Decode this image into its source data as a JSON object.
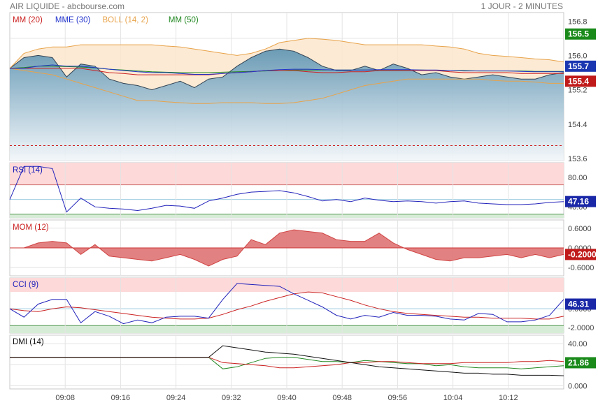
{
  "header": {
    "title": "AIR LIQUIDE - abcbourse.com",
    "interval": "1 JOUR - 2 MINUTES"
  },
  "colors": {
    "mm20": "#cc2222",
    "mme30": "#2233cc",
    "boll": "#e8a34a",
    "mm50": "#228822",
    "rsi": "#2222bb",
    "mom": "#d04545",
    "cci_mom": "#cc2222",
    "cci": "#2222bb",
    "dmi_adx": "#111111",
    "dmi_plus": "#228822",
    "dmi_minus": "#cc2222"
  },
  "chart_data": [
    {
      "type": "area",
      "name": "price",
      "legend": [
        "MM (20)",
        "MME (30)",
        "BOLL (14, 2)",
        "MM (50)"
      ],
      "x_ticks": [
        "09:08",
        "09:16",
        "09:24",
        "09:32",
        "09:40",
        "09:48",
        "09:56",
        "10:04",
        "10:12"
      ],
      "y_ticks": [
        "156.8",
        "156.0",
        "155.2",
        "154.4",
        "153.6"
      ],
      "ylim": [
        153.55,
        157.0
      ],
      "reference_line": 153.9,
      "badges": [
        {
          "label": "156.5",
          "value": 156.5,
          "color": "#1a8a1a"
        },
        {
          "label": "155.7",
          "value": 155.75,
          "color": "#1a36b0"
        },
        {
          "label": "155.4",
          "value": 155.4,
          "color": "#c01a1a"
        }
      ],
      "price": [
        155.7,
        155.95,
        156.0,
        155.95,
        155.5,
        155.8,
        155.75,
        155.45,
        155.35,
        155.3,
        155.2,
        155.3,
        155.4,
        155.25,
        155.45,
        155.5,
        155.75,
        155.95,
        156.1,
        156.15,
        156.1,
        155.95,
        155.75,
        155.65,
        155.65,
        155.75,
        155.65,
        155.8,
        155.7,
        155.55,
        155.6,
        155.5,
        155.45,
        155.5,
        155.55,
        155.5,
        155.45,
        155.45,
        155.55,
        155.6
      ],
      "mm20": [
        155.7,
        155.7,
        155.7,
        155.7,
        155.7,
        155.7,
        155.65,
        155.6,
        155.58,
        155.55,
        155.55,
        155.55,
        155.55,
        155.55,
        155.55,
        155.58,
        155.6,
        155.62,
        155.65,
        155.65,
        155.65,
        155.62,
        155.6,
        155.6,
        155.62,
        155.62,
        155.65,
        155.65,
        155.65,
        155.65,
        155.65,
        155.62,
        155.6,
        155.6,
        155.6,
        155.6,
        155.58,
        155.58,
        155.58,
        155.58
      ],
      "mme30": [
        155.7,
        155.7,
        155.75,
        155.78,
        155.75,
        155.75,
        155.72,
        155.68,
        155.65,
        155.62,
        155.6,
        155.6,
        155.58,
        155.56,
        155.56,
        155.58,
        155.6,
        155.62,
        155.65,
        155.67,
        155.68,
        155.68,
        155.67,
        155.66,
        155.66,
        155.66,
        155.67,
        155.67,
        155.67,
        155.66,
        155.66,
        155.65,
        155.64,
        155.64,
        155.64,
        155.64,
        155.63,
        155.62,
        155.62,
        155.62
      ],
      "mm50": [
        155.7,
        155.72,
        155.75,
        155.75,
        155.74,
        155.73,
        155.71,
        155.68,
        155.66,
        155.64,
        155.62,
        155.61,
        155.6,
        155.6,
        155.6,
        155.61,
        155.62,
        155.63,
        155.64,
        155.65,
        155.66,
        155.66,
        155.66,
        155.66,
        155.66,
        155.66,
        155.66,
        155.66,
        155.66,
        155.66,
        155.65,
        155.65,
        155.65,
        155.64,
        155.64,
        155.64,
        155.64,
        155.63,
        155.63,
        155.63
      ],
      "boll_upper": [
        155.7,
        156.05,
        156.15,
        156.2,
        156.2,
        156.25,
        156.25,
        156.25,
        156.25,
        156.25,
        156.25,
        156.22,
        156.2,
        156.15,
        156.1,
        156.05,
        156.0,
        156.05,
        156.15,
        156.3,
        156.35,
        156.4,
        156.38,
        156.35,
        156.3,
        156.25,
        156.25,
        156.25,
        156.25,
        156.25,
        156.22,
        156.2,
        156.15,
        156.05,
        156.0,
        155.98,
        155.95,
        155.92,
        155.9,
        155.85
      ],
      "boll_lower": [
        155.7,
        155.65,
        155.6,
        155.55,
        155.45,
        155.35,
        155.25,
        155.15,
        155.05,
        154.95,
        154.95,
        154.92,
        154.9,
        154.88,
        154.88,
        154.9,
        154.9,
        154.9,
        154.88,
        154.88,
        154.9,
        154.95,
        155.0,
        155.1,
        155.2,
        155.3,
        155.35,
        155.4,
        155.45,
        155.45,
        155.45,
        155.45,
        155.45,
        155.45,
        155.42,
        155.4,
        155.4,
        155.38,
        155.35,
        155.35
      ]
    },
    {
      "type": "line",
      "name": "rsi",
      "label": "RSI (14)",
      "y_ticks": [
        "80.00",
        "40.00"
      ],
      "ylim": [
        25,
        100
      ],
      "bands": [
        70,
        30
      ],
      "mid": 50,
      "badge": {
        "label": "47.16",
        "value": 47.16
      },
      "values": [
        50,
        95,
        95,
        92,
        33,
        52,
        40,
        38,
        37,
        35,
        38,
        42,
        41,
        38,
        48,
        52,
        57,
        60,
        61,
        62,
        59,
        54,
        48,
        50,
        47,
        52,
        49,
        47,
        48,
        47,
        45,
        47,
        48,
        45,
        44,
        43,
        43,
        44,
        46,
        47.16
      ]
    },
    {
      "type": "area",
      "name": "mom",
      "label": "MOM (12)",
      "y_ticks": [
        "0.6000",
        "0.0000",
        "-0.6000"
      ],
      "ylim": [
        -0.85,
        0.85
      ],
      "badge": {
        "label": "-0.2000",
        "value": -0.2
      },
      "values": [
        0.0,
        0.0,
        0.15,
        0.2,
        0.15,
        -0.2,
        0.1,
        -0.25,
        -0.3,
        -0.35,
        -0.4,
        -0.3,
        -0.2,
        -0.35,
        -0.55,
        -0.35,
        -0.25,
        0.25,
        0.1,
        0.45,
        0.55,
        0.5,
        0.45,
        0.25,
        0.2,
        0.2,
        0.45,
        0.15,
        -0.05,
        -0.2,
        -0.35,
        -0.4,
        -0.3,
        -0.3,
        -0.25,
        -0.2,
        -0.3,
        -0.2,
        -0.3,
        -0.2
      ]
    },
    {
      "type": "line",
      "name": "cci",
      "label": "CCI (9)",
      "y_ticks": [
        "0.0000",
        "-2.0000"
      ],
      "ylim": [
        -2.6,
        3.3
      ],
      "bands": [
        100,
        -100
      ],
      "mid": 0,
      "badge": {
        "label": "46.31",
        "value": 46.31
      },
      "cci": [
        0.0,
        -0.9,
        0.5,
        1.0,
        1.0,
        -1.5,
        -0.3,
        -0.8,
        -1.6,
        -1.2,
        -1.5,
        -0.9,
        -0.8,
        -0.8,
        -1.0,
        1.0,
        2.7,
        2.6,
        2.5,
        2.4,
        1.6,
        0.9,
        0.2,
        -0.7,
        -1.1,
        -0.7,
        -0.9,
        -0.4,
        -0.7,
        -0.7,
        -0.8,
        -1.1,
        -1.2,
        -0.5,
        -0.6,
        -1.4,
        -1.4,
        -1.2,
        -0.7,
        1.0
      ],
      "cci_mom": [
        0.0,
        -0.2,
        -0.3,
        0.0,
        0.2,
        0.1,
        -0.1,
        -0.3,
        -0.5,
        -0.7,
        -0.9,
        -1.0,
        -1.1,
        -1.1,
        -1.0,
        -0.6,
        -0.1,
        0.3,
        0.8,
        1.2,
        1.6,
        1.8,
        1.7,
        1.3,
        0.9,
        0.4,
        0.0,
        -0.3,
        -0.5,
        -0.6,
        -0.7,
        -0.8,
        -0.9,
        -0.9,
        -1.0,
        -1.0,
        -1.0,
        -1.1,
        -1.1,
        -0.8
      ]
    },
    {
      "type": "line",
      "name": "dmi",
      "label": "DMI (14)",
      "y_ticks": [
        "40.00",
        "20.00",
        "0.000"
      ],
      "ylim": [
        -3,
        48
      ],
      "badge": {
        "label": "21.86",
        "value": 21.86
      },
      "adx": [
        27,
        27,
        27,
        27,
        27,
        27,
        27,
        27,
        27,
        27,
        27,
        27,
        27,
        27,
        27,
        38,
        36,
        34,
        32,
        31,
        30,
        28,
        26,
        24,
        22,
        20,
        18,
        17,
        16,
        15,
        14,
        13,
        12,
        12,
        11,
        11,
        10,
        10,
        10,
        9.5
      ],
      "plus_di": [
        27,
        27,
        27,
        27,
        27,
        27,
        27,
        27,
        27,
        27,
        27,
        27,
        27,
        27,
        27,
        16,
        18,
        22,
        26,
        27,
        27,
        25,
        23,
        23,
        22,
        24,
        23,
        22,
        21,
        21,
        19,
        20,
        18,
        17,
        17,
        17,
        16,
        17,
        18,
        19
      ],
      "minus_di": [
        27,
        27,
        27,
        27,
        27,
        27,
        27,
        27,
        27,
        27,
        27,
        27,
        27,
        27,
        27,
        22,
        21,
        20,
        19,
        17,
        17,
        18,
        19,
        20,
        22,
        22,
        23,
        23,
        22,
        21,
        21,
        21,
        22,
        22,
        22,
        22,
        23,
        23,
        24,
        23
      ]
    }
  ]
}
